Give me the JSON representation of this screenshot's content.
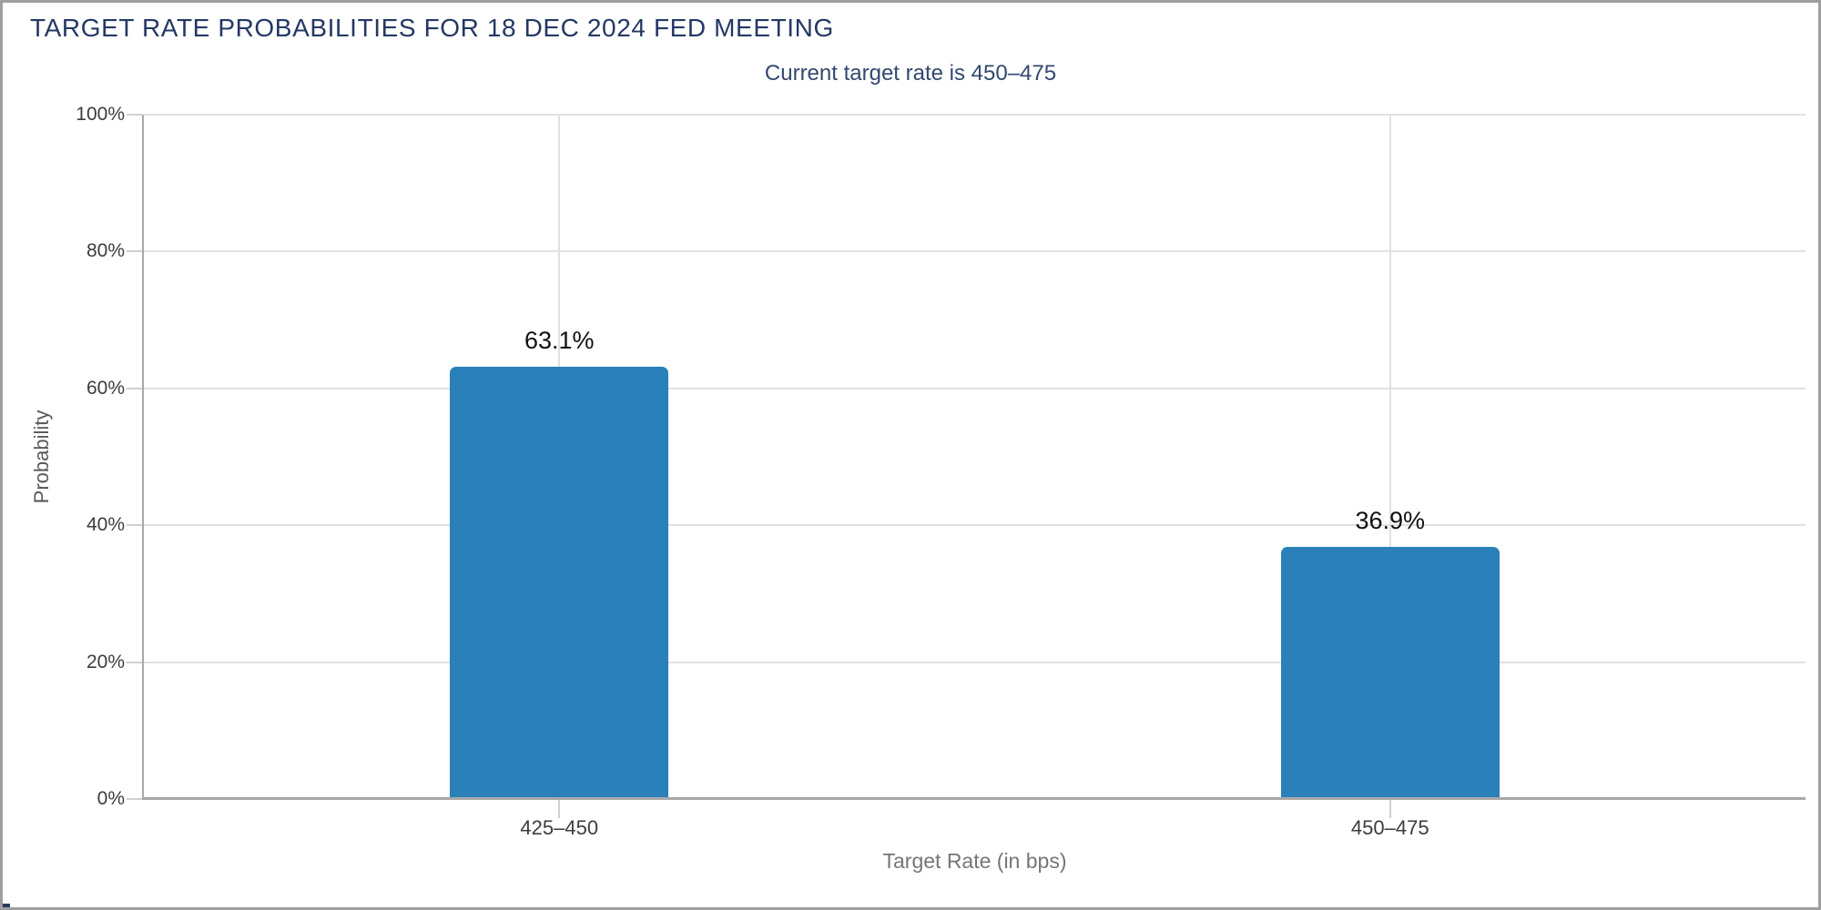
{
  "window": {
    "background": "#ffffff",
    "border_color": "#9e9e9e"
  },
  "chart_data": {
    "type": "bar",
    "title": "TARGET RATE PROBABILITIES FOR 18 DEC 2024 FED MEETING",
    "subtitle": "Current target rate is 450–475",
    "categories": [
      "425–450",
      "450–475"
    ],
    "values": [
      63.1,
      36.9
    ],
    "value_labels": [
      "63.1%",
      "36.9%"
    ],
    "xlabel": "Target Rate (in bps)",
    "ylabel": "Probability",
    "ylim": [
      0,
      100
    ],
    "ytick_labels": [
      "0%",
      "20%",
      "40%",
      "60%",
      "80%",
      "100%"
    ],
    "grid": true,
    "legend": "none",
    "colors": {
      "bar": "#2a80b9",
      "title": "#253865",
      "subtitle": "#33496e",
      "axis_line": "#a8a8a8",
      "gridline": "#e0e0e0",
      "tick_label": "#3c3c3c",
      "axis_title": "#767676",
      "value_label": "#111111"
    }
  }
}
